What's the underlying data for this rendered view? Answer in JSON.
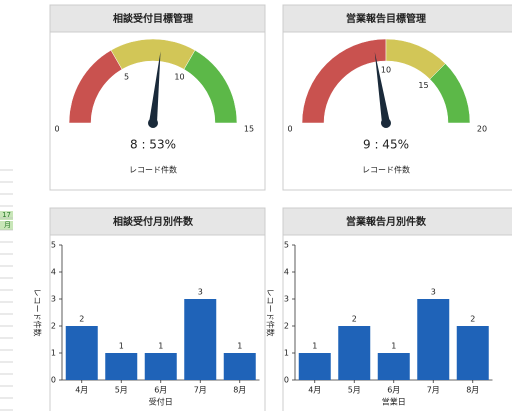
{
  "sidebar": [
    "17",
    "月"
  ],
  "chart_data": [
    {
      "type": "gauge",
      "title": "相談受付目標管理",
      "subtitle": "レコード件数",
      "values": [
        8
      ],
      "value_labels": [
        "8 : 53%"
      ],
      "xlim": [
        0,
        15
      ],
      "xticks": [
        0,
        5,
        10,
        15
      ],
      "bands": [
        {
          "from": 0,
          "to": 5,
          "color": "#c9524f"
        },
        {
          "from": 5,
          "to": 10,
          "color": "#d2c657"
        },
        {
          "from": 10,
          "to": 15,
          "color": "#5cb848"
        }
      ]
    },
    {
      "type": "gauge",
      "title": "営業報告目標管理",
      "subtitle": "レコード件数",
      "values": [
        9
      ],
      "value_labels": [
        "9 : 45%"
      ],
      "xlim": [
        0,
        20
      ],
      "xticks": [
        0,
        10,
        15,
        20
      ],
      "bands": [
        {
          "from": 0,
          "to": 10,
          "color": "#c9524f"
        },
        {
          "from": 10,
          "to": 15,
          "color": "#d2c657"
        },
        {
          "from": 15,
          "to": 20,
          "color": "#5cb848"
        }
      ]
    },
    {
      "type": "bar",
      "title": "相談受付月別件数",
      "categories": [
        "4月",
        "5月",
        "6月",
        "7月",
        "8月"
      ],
      "values": [
        2,
        1,
        1,
        3,
        1
      ],
      "color": "#1f63b8",
      "ylim": [
        0,
        5
      ],
      "yticks": [
        0,
        1,
        2,
        3,
        4,
        5
      ],
      "y_label": "レコード件数",
      "x_label": "受付日"
    },
    {
      "type": "bar",
      "title": "営業報告月別件数",
      "categories": [
        "4月",
        "5月",
        "6月",
        "7月",
        "8月"
      ],
      "values": [
        1,
        2,
        1,
        3,
        2
      ],
      "color": "#1f63b8",
      "ylim": [
        0,
        5
      ],
      "yticks": [
        0,
        1,
        2,
        3,
        4,
        5
      ],
      "y_label": "レコード件数",
      "x_label": "営業日"
    }
  ]
}
